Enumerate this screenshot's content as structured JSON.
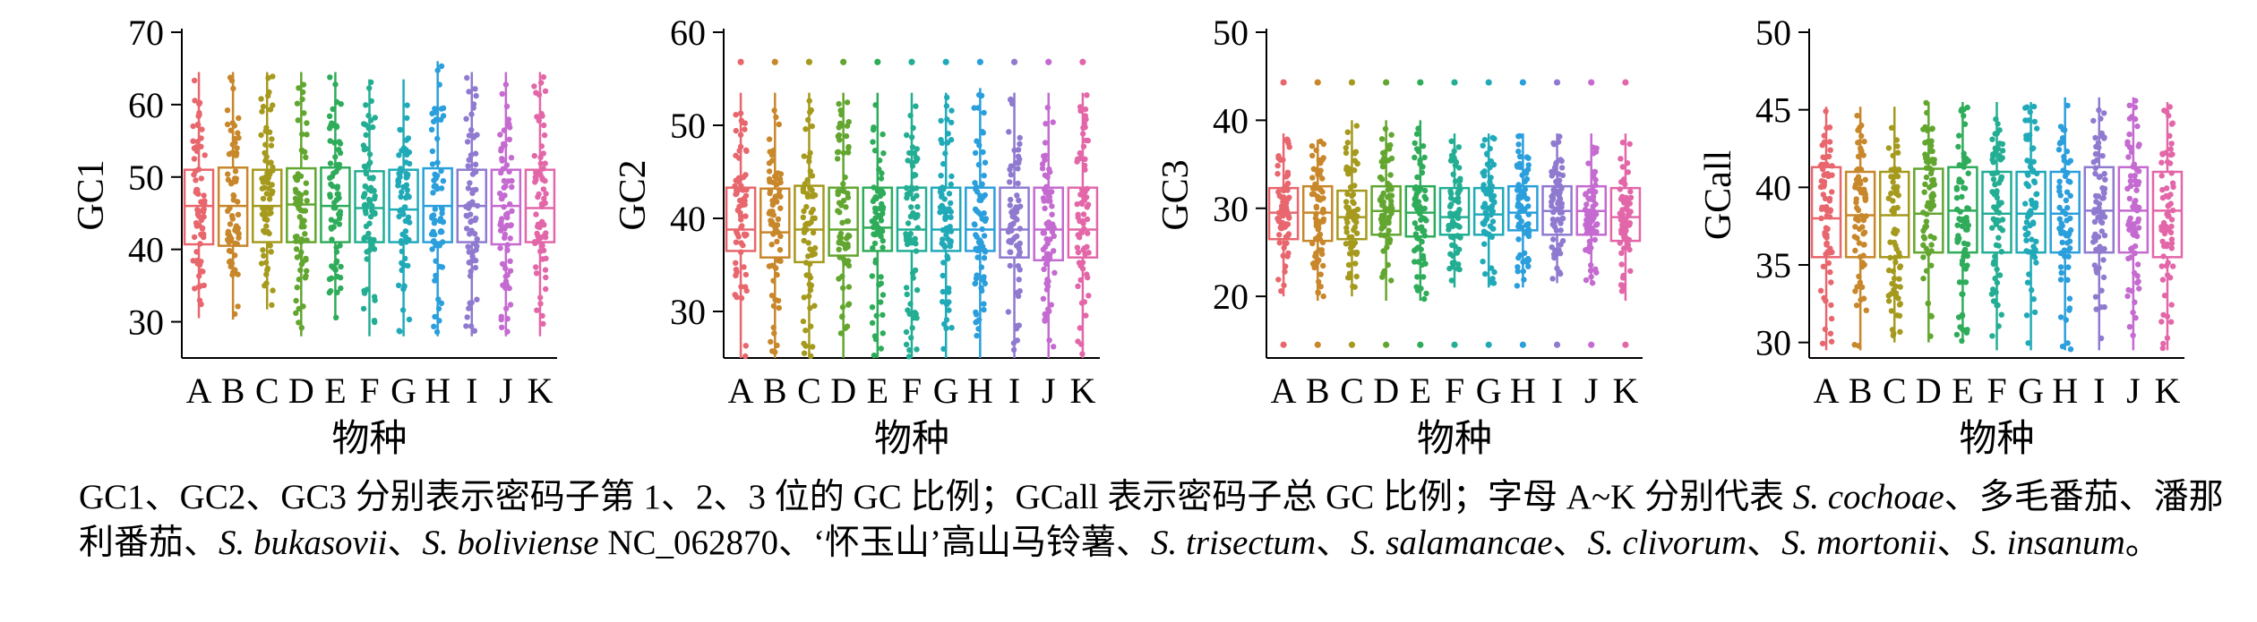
{
  "palette": [
    "#e8666d",
    "#c8872a",
    "#a59a1d",
    "#62a630",
    "#2eac5a",
    "#23ae94",
    "#20aab8",
    "#2a9fdc",
    "#8f7ad0",
    "#c46ad0",
    "#e367a8"
  ],
  "chart_data": [
    {
      "type": "box",
      "ylabel": "GC1",
      "xlabel": "物种",
      "categories": [
        "A",
        "B",
        "C",
        "D",
        "E",
        "F",
        "G",
        "H",
        "I",
        "J",
        "K"
      ],
      "ylim": [
        25,
        70
      ],
      "yticks": [
        30,
        40,
        50,
        60,
        70
      ],
      "boxes": [
        {
          "q1": 40.7,
          "median": 46.0,
          "q3": 51.0,
          "whisker_low": 30.5,
          "whisker_high": 64.5,
          "outliers": []
        },
        {
          "q1": 40.5,
          "median": 46.0,
          "q3": 51.3,
          "whisker_low": 30.3,
          "whisker_high": 64.5,
          "outliers": []
        },
        {
          "q1": 41.0,
          "median": 46.0,
          "q3": 51.0,
          "whisker_low": 31.7,
          "whisker_high": 64.5,
          "outliers": []
        },
        {
          "q1": 41.0,
          "median": 46.2,
          "q3": 51.2,
          "whisker_low": 28.0,
          "whisker_high": 64.5,
          "outliers": []
        },
        {
          "q1": 41.0,
          "median": 46.0,
          "q3": 51.3,
          "whisker_low": 30.2,
          "whisker_high": 64.5,
          "outliers": []
        },
        {
          "q1": 41.0,
          "median": 45.7,
          "q3": 50.8,
          "whisker_low": 28.0,
          "whisker_high": 63.5,
          "outliers": []
        },
        {
          "q1": 41.0,
          "median": 45.5,
          "q3": 51.0,
          "whisker_low": 28.0,
          "whisker_high": 63.5,
          "outliers": []
        },
        {
          "q1": 41.0,
          "median": 46.0,
          "q3": 51.2,
          "whisker_low": 28.0,
          "whisker_high": 66.0,
          "outliers": []
        },
        {
          "q1": 41.0,
          "median": 46.0,
          "q3": 51.0,
          "whisker_low": 28.0,
          "whisker_high": 64.5,
          "outliers": []
        },
        {
          "q1": 40.7,
          "median": 46.0,
          "q3": 51.0,
          "whisker_low": 28.0,
          "whisker_high": 64.5,
          "outliers": []
        },
        {
          "q1": 41.0,
          "median": 45.7,
          "q3": 51.0,
          "whisker_low": 28.0,
          "whisker_high": 64.5,
          "outliers": []
        }
      ]
    },
    {
      "type": "box",
      "ylabel": "GC2",
      "xlabel": "物种",
      "categories": [
        "A",
        "B",
        "C",
        "D",
        "E",
        "F",
        "G",
        "H",
        "I",
        "J",
        "K"
      ],
      "ylim": [
        25,
        60
      ],
      "yticks": [
        30,
        40,
        50,
        60
      ],
      "boxes": [
        {
          "q1": 36.5,
          "median": 38.8,
          "q3": 43.3,
          "whisker_low": 25.0,
          "whisker_high": 53.5,
          "outliers": [
            56.8
          ]
        },
        {
          "q1": 35.8,
          "median": 38.5,
          "q3": 43.2,
          "whisker_low": 25.0,
          "whisker_high": 53.5,
          "outliers": [
            56.8
          ]
        },
        {
          "q1": 35.3,
          "median": 38.8,
          "q3": 43.5,
          "whisker_low": 25.0,
          "whisker_high": 53.5,
          "outliers": [
            56.8
          ]
        },
        {
          "q1": 36.0,
          "median": 38.8,
          "q3": 43.3,
          "whisker_low": 25.0,
          "whisker_high": 53.5,
          "outliers": [
            56.8
          ]
        },
        {
          "q1": 36.5,
          "median": 39.0,
          "q3": 43.3,
          "whisker_low": 25.0,
          "whisker_high": 53.5,
          "outliers": [
            56.8
          ]
        },
        {
          "q1": 36.5,
          "median": 38.8,
          "q3": 43.3,
          "whisker_low": 25.0,
          "whisker_high": 53.5,
          "outliers": [
            56.8
          ]
        },
        {
          "q1": 36.5,
          "median": 38.8,
          "q3": 43.3,
          "whisker_low": 25.0,
          "whisker_high": 53.5,
          "outliers": [
            56.8
          ]
        },
        {
          "q1": 36.5,
          "median": 38.8,
          "q3": 43.3,
          "whisker_low": 25.0,
          "whisker_high": 54.0,
          "outliers": [
            56.8
          ]
        },
        {
          "q1": 35.8,
          "median": 38.8,
          "q3": 43.3,
          "whisker_low": 25.0,
          "whisker_high": 53.5,
          "outliers": [
            56.8
          ]
        },
        {
          "q1": 35.5,
          "median": 38.8,
          "q3": 43.3,
          "whisker_low": 25.0,
          "whisker_high": 53.5,
          "outliers": [
            56.8
          ]
        },
        {
          "q1": 35.8,
          "median": 38.8,
          "q3": 43.3,
          "whisker_low": 25.0,
          "whisker_high": 53.5,
          "outliers": [
            56.8
          ]
        }
      ]
    },
    {
      "type": "box",
      "ylabel": "GC3",
      "xlabel": "物种",
      "categories": [
        "A",
        "B",
        "C",
        "D",
        "E",
        "F",
        "G",
        "H",
        "I",
        "J",
        "K"
      ],
      "ylim": [
        13,
        50
      ],
      "yticks": [
        20,
        30,
        40,
        50
      ],
      "boxes": [
        {
          "q1": 26.5,
          "median": 29.5,
          "q3": 32.3,
          "whisker_low": 20.0,
          "whisker_high": 38.5,
          "outliers": [
            44.3,
            14.5
          ]
        },
        {
          "q1": 26.3,
          "median": 29.5,
          "q3": 32.5,
          "whisker_low": 19.5,
          "whisker_high": 37.8,
          "outliers": [
            44.3,
            14.5
          ]
        },
        {
          "q1": 26.5,
          "median": 29.0,
          "q3": 32.0,
          "whisker_low": 20.0,
          "whisker_high": 40.0,
          "outliers": [
            44.3,
            14.5
          ]
        },
        {
          "q1": 27.0,
          "median": 29.7,
          "q3": 32.5,
          "whisker_low": 19.5,
          "whisker_high": 40.0,
          "outliers": [
            44.3,
            14.5
          ]
        },
        {
          "q1": 26.8,
          "median": 29.5,
          "q3": 32.5,
          "whisker_low": 19.5,
          "whisker_high": 40.0,
          "outliers": [
            44.3,
            14.5
          ]
        },
        {
          "q1": 27.0,
          "median": 29.0,
          "q3": 32.3,
          "whisker_low": 21.0,
          "whisker_high": 38.5,
          "outliers": [
            44.3,
            14.5
          ]
        },
        {
          "q1": 27.0,
          "median": 29.3,
          "q3": 32.3,
          "whisker_low": 21.0,
          "whisker_high": 38.5,
          "outliers": [
            44.3,
            14.5
          ]
        },
        {
          "q1": 27.5,
          "median": 29.5,
          "q3": 32.5,
          "whisker_low": 21.0,
          "whisker_high": 38.5,
          "outliers": [
            44.3,
            14.5
          ]
        },
        {
          "q1": 27.0,
          "median": 29.7,
          "q3": 32.5,
          "whisker_low": 21.5,
          "whisker_high": 38.5,
          "outliers": [
            44.3,
            14.5
          ]
        },
        {
          "q1": 27.0,
          "median": 29.7,
          "q3": 32.5,
          "whisker_low": 21.5,
          "whisker_high": 38.5,
          "outliers": [
            44.3,
            14.5
          ]
        },
        {
          "q1": 26.3,
          "median": 29.0,
          "q3": 32.3,
          "whisker_low": 19.5,
          "whisker_high": 38.5,
          "outliers": [
            44.3,
            14.5
          ]
        }
      ]
    },
    {
      "type": "box",
      "ylabel": "GCall",
      "xlabel": "物种",
      "categories": [
        "A",
        "B",
        "C",
        "D",
        "E",
        "F",
        "G",
        "H",
        "I",
        "J",
        "K"
      ],
      "ylim": [
        29,
        50
      ],
      "yticks": [
        30,
        35,
        40,
        45,
        50
      ],
      "boxes": [
        {
          "q1": 35.5,
          "median": 38.0,
          "q3": 41.3,
          "whisker_low": 29.5,
          "whisker_high": 45.2,
          "outliers": []
        },
        {
          "q1": 35.5,
          "median": 38.2,
          "q3": 41.0,
          "whisker_low": 29.5,
          "whisker_high": 45.2,
          "outliers": []
        },
        {
          "q1": 35.5,
          "median": 38.2,
          "q3": 41.0,
          "whisker_low": 30.0,
          "whisker_high": 45.2,
          "outliers": []
        },
        {
          "q1": 35.8,
          "median": 38.3,
          "q3": 41.2,
          "whisker_low": 30.0,
          "whisker_high": 45.5,
          "outliers": []
        },
        {
          "q1": 35.8,
          "median": 38.5,
          "q3": 41.3,
          "whisker_low": 30.0,
          "whisker_high": 45.5,
          "outliers": []
        },
        {
          "q1": 35.8,
          "median": 38.3,
          "q3": 41.0,
          "whisker_low": 29.5,
          "whisker_high": 45.5,
          "outliers": []
        },
        {
          "q1": 35.8,
          "median": 38.3,
          "q3": 41.0,
          "whisker_low": 29.5,
          "whisker_high": 45.5,
          "outliers": []
        },
        {
          "q1": 35.8,
          "median": 38.3,
          "q3": 41.0,
          "whisker_low": 29.5,
          "whisker_high": 45.8,
          "outliers": []
        },
        {
          "q1": 35.8,
          "median": 38.5,
          "q3": 41.3,
          "whisker_low": 29.5,
          "whisker_high": 45.8,
          "outliers": []
        },
        {
          "q1": 35.8,
          "median": 38.5,
          "q3": 41.3,
          "whisker_low": 29.5,
          "whisker_high": 45.8,
          "outliers": []
        },
        {
          "q1": 35.5,
          "median": 38.5,
          "q3": 41.0,
          "whisker_low": 29.5,
          "whisker_high": 45.5,
          "outliers": []
        }
      ]
    }
  ],
  "caption": {
    "segments": [
      {
        "text": "GC1、GC2、GC3 分别表示密码子第 1、2、3 位的 GC 比例；GCall 表示密码子总 GC 比例；字母 A~K 分别代表 ",
        "italic": false
      },
      {
        "text": "S. cochoae",
        "italic": true
      },
      {
        "text": "、多毛番茄、潘那利番茄、",
        "italic": false
      },
      {
        "text": "S. bukasovii",
        "italic": true
      },
      {
        "text": "、",
        "italic": false
      },
      {
        "text": "S. boliviense",
        "italic": true
      },
      {
        "text": " NC_062870、‘怀玉山’高山马铃薯、",
        "italic": false
      },
      {
        "text": "S. trisectum",
        "italic": true
      },
      {
        "text": "、",
        "italic": false
      },
      {
        "text": "S. salamancae",
        "italic": true
      },
      {
        "text": "、",
        "italic": false
      },
      {
        "text": "S. clivorum",
        "italic": true
      },
      {
        "text": "、",
        "italic": false
      },
      {
        "text": "S. mortonii",
        "italic": true
      },
      {
        "text": "、",
        "italic": false
      },
      {
        "text": "S. insanum",
        "italic": true
      },
      {
        "text": "。",
        "italic": false
      }
    ]
  }
}
